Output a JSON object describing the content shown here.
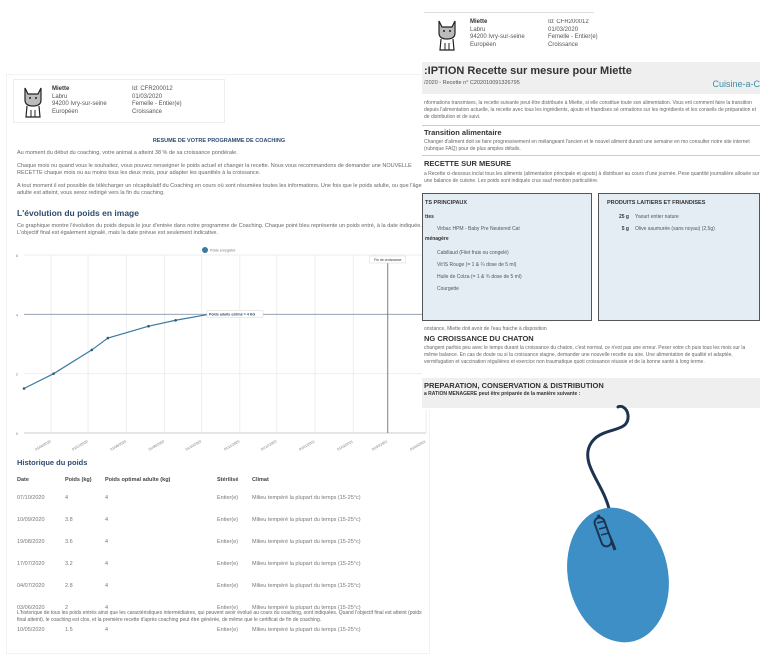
{
  "pet": {
    "name": "Miette",
    "breed_line": "Labru",
    "city": "94200 Ivry-sur-seine",
    "type": "Européen",
    "id": "Id: CFR200012",
    "date": "01/03/2020",
    "sex": "Femelle - Entier(e)",
    "stage": "Croissance"
  },
  "left": {
    "summary_title": "RESUME DE VOTRE PROGRAMME DE COACHING",
    "p1": "Au moment du début du coaching, votre animal a atteint 38 % de sa croissance pondérale.",
    "p2": "Chaque mois ou quand vous le souhaitez, vous pouvez renseigner le poids actuel et changer la recette. Nous vous recommandons de demander une NOUVELLE RECETTE chaque mois ou au moins tous les deux mois, pour adapter les quantités à la croissance.",
    "p3": "A tout moment il est possible de télécharger un récapitulatif du Coaching en cours où sont résumées toutes les informations. Une fois que le poids adulte, ou que l'âge adulte est atteint, vous serez redirigé vers la fin du coaching.",
    "chart_heading": "L'évolution du poids en image",
    "chart_desc": "Ce graphique montre l'évolution du poids depuis le jour d'entrée dans notre programme de Coaching. Chaque point bleu représente un poids entré, à la date indiquée. L'objectif final est également signalé, mais la date prévue est seulement indicative.",
    "history_heading": "Historique du poids",
    "columns": [
      "Date",
      "Poids (kg)",
      "Poids optimal adulte (kg)",
      "Stérilisé",
      "Climat"
    ],
    "rows": [
      [
        "07/10/2020",
        "4",
        "4",
        "Entier(e)",
        "Milieu tempéré la plupart du temps (15-25°c)"
      ],
      [
        "10/09/2020",
        "3.8",
        "4",
        "Entier(e)",
        "Milieu tempéré la plupart du temps (15-25°c)"
      ],
      [
        "19/08/2020",
        "3.6",
        "4",
        "Entier(e)",
        "Milieu tempéré la plupart du temps (15-25°c)"
      ],
      [
        "17/07/2020",
        "3.2",
        "4",
        "Entier(e)",
        "Milieu tempéré la plupart du temps (15-25°c)"
      ],
      [
        "04/07/2020",
        "2.8",
        "4",
        "Entier(e)",
        "Milieu tempéré la plupart du temps (15-25°c)"
      ],
      [
        "03/06/2020",
        "2",
        "4",
        "Entier(e)",
        "Milieu tempéré la plupart du temps (15-25°c)"
      ],
      [
        "10/05/2020",
        "1.5",
        "4",
        "Entier(e)",
        "Milieu tempéré la plupart du temps (15-25°c)"
      ]
    ],
    "footnote": "L'historique de tous les poids entrés ainsi que les caractéristiques intermédiaires, qui peuvent avoir évolué au cours du coaching, sont indiquées. Quand l'objectif final est atteint (poids final atteint), le coaching est clos, et la première recette d'après coaching peut être générée, de même que le certificat de fin de coaching."
  },
  "chart_data": {
    "type": "line",
    "series": [
      {
        "name": "Poids enregistré",
        "x": [
          "2020-05-10",
          "2020-06-03",
          "2020-07-04",
          "2020-07-17",
          "2020-08-19",
          "2020-09-10",
          "2020-10-07"
        ],
        "y": [
          1.5,
          2,
          2.8,
          3.2,
          3.6,
          3.8,
          4
        ]
      }
    ],
    "xticks": [
      "01/06/2020",
      "01/07/2020",
      "01/08/2020",
      "01/09/2020",
      "01/10/2020",
      "01/11/2020",
      "01/12/2020",
      "01/01/2021",
      "01/02/2021",
      "01/03/2021",
      "01/04/2021"
    ],
    "yticks": [
      "0",
      "2",
      "4",
      "6"
    ],
    "ylim": [
      0,
      6
    ],
    "xlim": [
      "2020-05-10",
      "2021-04-01"
    ],
    "hline": {
      "y": 4,
      "label": "Poids adulte estimé = 4 KG"
    },
    "vline": {
      "x": "2021-03-01",
      "label": "Fin de croissance"
    },
    "legend": "top-center",
    "grid": true,
    "color": "#3a7aa3"
  },
  "right": {
    "title": ":IPTION Recette sur mesure pour Miette",
    "subtitle": "/2020 - Recette n° C202010091326795",
    "brand": "Cuisine-a-C",
    "intro": "nformations transmises, la recette suivante peut être distribuée à Miette, si elle constitue toute son alimentation. Vous ent comment faire la transition depuis l'alimentation actuelle, la recette avec tous les ingrédients, ajouts et friandises sé ormations sur les ingrédients et les conseils de préparation et de distribution et de suivi.",
    "transition_title": "Transition alimentaire",
    "transition_text": "Changer d'aliment doit se faire progressivement en mélangeant l'ancien et le nouvel aliment durant une semaine en mo consulter notre site internet (rubrique FAQ) pour de plus amples détails.",
    "recipe_title": "RECETTE SUR MESURE",
    "recipe_text": "a Recette ci-dessous inclut tous les aliments (alimentation principale et ajouts) à distribuer au cours d'une journée. Pese quantité journalière allouée sur une balance de cuisine. Les poids sont indiqués crus sauf mention particulière.",
    "box1_title": "TS PRINCIPAUX",
    "box1_sub1": "ttes",
    "box1_items1": [
      "Virbac HPM - Baby Pre Neutered Cat"
    ],
    "box1_sub2": "ménagère",
    "box1_items2": [
      "Cabillaud (Filet frais ou congelé)",
      "Vit'iS Rouge (= 1 & ¼ dose de 5 ml)",
      "Huile de Colza (= 1 & ¾ dose de 5 ml)",
      "Courgette"
    ],
    "box2_title": "PRODUITS LAITIERS ET FRIANDISES",
    "box2_items": [
      {
        "qty": "25 g",
        "name": "Yaourt entier nature"
      },
      {
        "qty": "5 g",
        "name": "Olive saumurée (sans noyau) (2,5g)"
      }
    ],
    "water": "onstance, Miette doit avoir de l'eau fraiche à disposition",
    "growth_title": "NG CROISSANCE DU CHATON",
    "growth_text": "changent parfois peu avec le temps durant la croissance du chaton, c'est normal, ce n'est pas une erreur. Peser votre ch puis tous les mois sur la même balance. En cas de doute ou si la croissance stagne, demander une nouvelle recette ou aire. Une alimentation de qualité et adaptée, vermifugation et vaccination régulières et exercice non traumatique quoti croissance réussie et de la bonne santé à long terme.",
    "prep_title": "PREPARATION, CONSERVATION & DISTRIBUTION",
    "prep_sub": "a RATION MENAGERE peut être préparée de la manière suivante :"
  },
  "mouse": {
    "color": "#3d8fc6",
    "cord_color": "#1e3350",
    "icon": "computer-mouse-icon"
  }
}
